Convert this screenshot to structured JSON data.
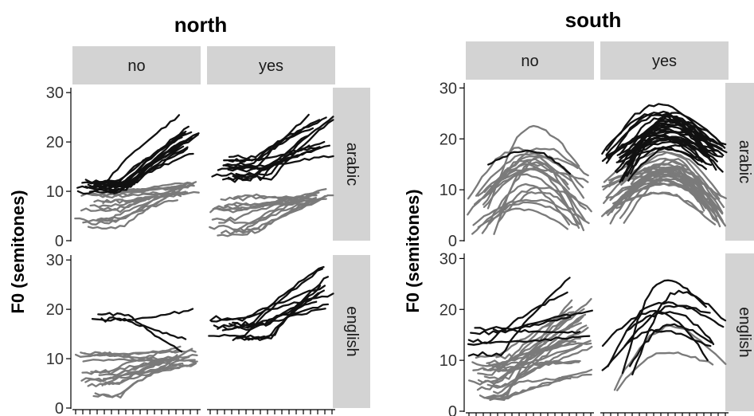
{
  "chart_data": {
    "type": "line",
    "panels_title_set": [
      "north",
      "south"
    ],
    "column_strips": [
      "no",
      "yes"
    ],
    "row_strips": [
      "arabic",
      "english"
    ],
    "ylabel": "F0 (semitones)",
    "yticks": [
      0,
      10,
      20,
      30
    ],
    "ylim": [
      0,
      31
    ],
    "x_ticks_count": 18,
    "x_tick_labels_visible": false,
    "series_colors": {
      "black": "#111111",
      "grey": "#7a7a7a"
    },
    "groups": [
      {
        "name": "north",
        "panels": [
          {
            "strip_col": "no",
            "strip_row": "arabic",
            "black": {
              "count": 16,
              "start": [
                10,
                12
              ],
              "end": [
                17,
                26
              ],
              "shape": "rise",
              "rise_at": 0.35
            },
            "grey": {
              "count": 16,
              "start": [
                2,
                11
              ],
              "end": [
                8,
                12
              ],
              "shape": "rise",
              "rise_at": 0.3
            }
          },
          {
            "strip_col": "yes",
            "strip_row": "arabic",
            "black": {
              "count": 13,
              "start": [
                12,
                17
              ],
              "end": [
                16,
                26
              ],
              "shape": "rise",
              "rise_at": 0.35
            },
            "grey": {
              "count": 14,
              "start": [
                1,
                9
              ],
              "end": [
                8,
                11
              ],
              "shape": "rise",
              "rise_at": 0.3
            }
          },
          {
            "strip_col": "no",
            "strip_row": "english",
            "black": {
              "count": 3,
              "start": [
                16,
                19
              ],
              "end": [
                7,
                26
              ],
              "shape": "mixed",
              "rise_at": 0.4
            },
            "grey": {
              "count": 16,
              "start": [
                2,
                11
              ],
              "end": [
                8,
                13
              ],
              "shape": "rise",
              "rise_at": 0.2
            }
          },
          {
            "strip_col": "yes",
            "strip_row": "english",
            "black": {
              "count": 11,
              "start": [
                13,
                19
              ],
              "end": [
                20,
                29
              ],
              "shape": "rise",
              "rise_at": 0.35
            },
            "grey": {
              "count": 0
            }
          }
        ]
      },
      {
        "name": "south",
        "panels": [
          {
            "strip_col": "no",
            "strip_row": "arabic",
            "black": {
              "count": 1,
              "start": [
                15,
                15
              ],
              "end": [
                13,
                13
              ],
              "shape": "peak",
              "rise_at": 0.5
            },
            "grey": {
              "count": 20,
              "start": [
                1,
                10
              ],
              "end": [
                2,
                15
              ],
              "shape": "peak",
              "rise_at": 0.5
            }
          },
          {
            "strip_col": "yes",
            "strip_row": "arabic",
            "black": {
              "count": 30,
              "start": [
                11,
                18
              ],
              "end": [
                13,
                20
              ],
              "shape": "peak",
              "rise_at": 0.5
            },
            "grey": {
              "count": 30,
              "start": [
                3,
                12
              ],
              "end": [
                3,
                9
              ],
              "shape": "peak",
              "rise_at": 0.5
            }
          },
          {
            "strip_col": "no",
            "strip_row": "english",
            "black": {
              "count": 6,
              "start": [
                10,
                17
              ],
              "end": [
                13,
                28
              ],
              "shape": "rise",
              "rise_at": 0.3
            },
            "grey": {
              "count": 24,
              "start": [
                2,
                12
              ],
              "end": [
                6,
                22
              ],
              "shape": "rise",
              "rise_at": 0.2
            }
          },
          {
            "strip_col": "yes",
            "strip_row": "english",
            "black": {
              "count": 8,
              "start": [
                7,
                17
              ],
              "end": [
                6,
                23
              ],
              "shape": "peak",
              "rise_at": 0.5
            },
            "grey": {
              "count": 2,
              "start": [
                4,
                6
              ],
              "end": [
                9,
                10
              ],
              "shape": "peak",
              "rise_at": 0.5
            }
          }
        ]
      }
    ]
  }
}
